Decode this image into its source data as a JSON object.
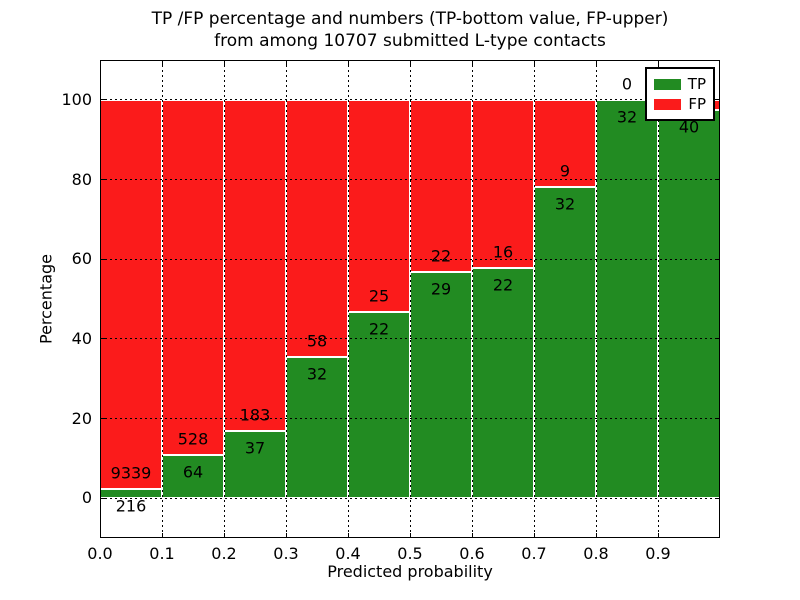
{
  "title": {
    "line1": "TP /FP percentage and numbers (TP-bottom value, FP-upper)",
    "line2": "from among 10707 submitted L-type contacts"
  },
  "axes": {
    "xlabel": "Predicted probability",
    "ylabel": "Percentage",
    "xtick_labels": [
      "0.0",
      "0.1",
      "0.2",
      "0.3",
      "0.4",
      "0.5",
      "0.6",
      "0.7",
      "0.8",
      "0.9"
    ],
    "ytick_labels": [
      "0",
      "20",
      "40",
      "60",
      "80",
      "100"
    ]
  },
  "legend": {
    "position": "upper right",
    "entries": [
      {
        "label": "TP",
        "color": "#228b22"
      },
      {
        "label": "FP",
        "color": "#fb1b1b"
      }
    ]
  },
  "colors": {
    "tp_green": "#228b22",
    "fp_red": "#fb1b1b",
    "grid": "#000000",
    "background": "#ffffff",
    "text": "#000000"
  },
  "chart_data": {
    "type": "bar",
    "stacked": true,
    "normalized_to_percent": true,
    "title": "TP /FP percentage and numbers (TP-bottom value, FP-upper) from among 10707 submitted L-type contacts",
    "xlabel": "Predicted probability",
    "ylabel": "Percentage",
    "total_submitted_contacts": 10707,
    "x_bins": [
      [
        0.0,
        0.1
      ],
      [
        0.1,
        0.2
      ],
      [
        0.2,
        0.3
      ],
      [
        0.3,
        0.4
      ],
      [
        0.4,
        0.5
      ],
      [
        0.5,
        0.6
      ],
      [
        0.6,
        0.7
      ],
      [
        0.7,
        0.8
      ],
      [
        0.8,
        0.9
      ],
      [
        0.9,
        1.0
      ]
    ],
    "xticks": [
      0.0,
      0.1,
      0.2,
      0.3,
      0.4,
      0.5,
      0.6,
      0.7,
      0.8,
      0.9
    ],
    "yticks": [
      0,
      20,
      40,
      60,
      80,
      100
    ],
    "xlim": [
      0,
      1
    ],
    "ylim": [
      -10,
      110
    ],
    "grid": true,
    "legend_position": "upper right",
    "series": [
      {
        "name": "TP",
        "values": [
          216,
          64,
          37,
          32,
          22,
          29,
          22,
          32,
          32,
          40
        ]
      },
      {
        "name": "FP",
        "values": [
          9339,
          528,
          183,
          58,
          25,
          22,
          16,
          9,
          0,
          1
        ]
      }
    ],
    "value_labels": {
      "tp": [
        "216",
        "64",
        "37",
        "32",
        "22",
        "29",
        "22",
        "32",
        "32",
        "40"
      ],
      "fp": [
        "9339",
        "528",
        "183",
        "58",
        "25",
        "22",
        "16",
        "9",
        "0",
        ""
      ]
    }
  }
}
